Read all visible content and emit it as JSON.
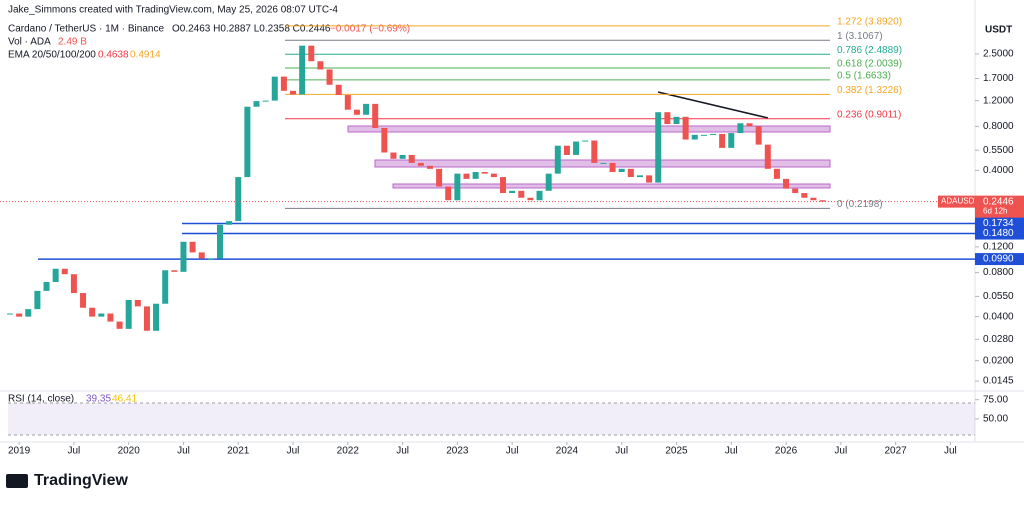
{
  "header": {
    "credit": "Jake_Simmons created with TradingView.com, May 25, 2026 08:07 UTC-4",
    "symbol": "Cardano / TetherUS · 1M · Binance",
    "ohlc": "O0.2463 H0.2887 L0.2358 C0.2446",
    "change": "−0.0017 (−0.69%)",
    "volume": "Vol · ADA",
    "volume_value": "2.49 B",
    "ema": "EMA 20/50/100/200",
    "ema_values": [
      "0.4638",
      "0.4914"
    ],
    "rsi": "RSI (14, close)",
    "rsi_values": [
      "39.35",
      "46.41"
    ],
    "currency": "USDT",
    "logo": "TradingView"
  },
  "chart_data": {
    "type": "candlestick",
    "log_scale": true,
    "x": [
      "2018-12",
      "2019-01",
      "2019-02",
      "2019-03",
      "2019-04",
      "2019-05",
      "2019-06",
      "2019-07",
      "2019-08",
      "2019-09",
      "2019-10",
      "2019-11",
      "2019-12",
      "2020-01",
      "2020-02",
      "2020-03",
      "2020-04",
      "2020-05",
      "2020-06",
      "2020-07",
      "2020-08",
      "2020-09",
      "2020-10",
      "2020-11",
      "2020-12",
      "2021-01",
      "2021-02",
      "2021-03",
      "2021-04",
      "2021-05",
      "2021-06",
      "2021-07",
      "2021-08",
      "2021-09",
      "2021-10",
      "2021-11",
      "2021-12",
      "2022-01",
      "2022-02",
      "2022-03",
      "2022-04",
      "2022-05",
      "2022-06",
      "2022-07",
      "2022-08",
      "2022-09",
      "2022-10",
      "2022-11",
      "2022-12",
      "2023-01",
      "2023-02",
      "2023-03",
      "2023-04",
      "2023-05",
      "2023-06",
      "2023-07",
      "2023-08",
      "2023-09",
      "2023-10",
      "2023-11",
      "2023-12",
      "2024-01",
      "2024-02",
      "2024-03",
      "2024-04",
      "2024-05",
      "2024-06",
      "2024-07",
      "2024-08",
      "2024-09",
      "2024-10",
      "2024-11",
      "2024-12",
      "2025-01",
      "2025-02",
      "2025-03",
      "2025-04",
      "2025-05",
      "2025-06",
      "2025-07",
      "2025-08",
      "2025-09",
      "2025-10",
      "2025-11",
      "2025-12",
      "2026-01",
      "2026-02",
      "2026-03",
      "2026-04",
      "2026-05"
    ],
    "close": [
      0.042,
      0.04,
      0.045,
      0.06,
      0.069,
      0.085,
      0.078,
      0.058,
      0.046,
      0.04,
      0.042,
      0.037,
      0.033,
      0.052,
      0.047,
      0.032,
      0.049,
      0.083,
      0.081,
      0.13,
      0.11,
      0.1,
      0.1,
      0.17,
      0.18,
      0.36,
      1.09,
      1.19,
      1.2,
      1.75,
      1.4,
      1.32,
      2.85,
      2.23,
      1.96,
      1.54,
      1.31,
      1.04,
      0.96,
      1.14,
      0.78,
      0.53,
      0.48,
      0.51,
      0.45,
      0.43,
      0.41,
      0.31,
      0.25,
      0.38,
      0.35,
      0.39,
      0.38,
      0.36,
      0.28,
      0.29,
      0.26,
      0.25,
      0.29,
      0.38,
      0.59,
      0.51,
      0.63,
      0.64,
      0.45,
      0.45,
      0.39,
      0.41,
      0.36,
      0.37,
      0.33,
      1.0,
      0.83,
      0.93,
      0.65,
      0.7,
      0.7,
      0.71,
      0.57,
      0.72,
      0.84,
      0.8,
      0.6,
      0.41,
      0.35,
      0.3,
      0.28,
      0.26,
      0.25,
      0.2446
    ],
    "up_color": "#26a69a",
    "down_color": "#ef5350",
    "ylim": [
      0.0126,
      5.85
    ],
    "yticks": [
      {
        "value": 2.5,
        "label": "2.5000"
      },
      {
        "value": 1.7,
        "label": "1.7000"
      },
      {
        "value": 1.2,
        "label": "1.2000"
      },
      {
        "value": 0.8,
        "label": "0.8000"
      },
      {
        "value": 0.55,
        "label": "0.5500"
      },
      {
        "value": 0.4,
        "label": "0.4000"
      },
      {
        "value": 0.12,
        "label": "0.1200"
      },
      {
        "value": 0.08,
        "label": "0.0800"
      },
      {
        "value": 0.055,
        "label": "0.0550"
      },
      {
        "value": 0.04,
        "label": "0.0400"
      },
      {
        "value": 0.028,
        "label": "0.0280"
      },
      {
        "value": 0.02,
        "label": "0.0200"
      },
      {
        "value": 0.0145,
        "label": "0.0145"
      }
    ],
    "xticks": [
      {
        "value": "2019-01",
        "label": "2019"
      },
      {
        "value": "2019-07",
        "label": "Jul"
      },
      {
        "value": "2020-01",
        "label": "2020"
      },
      {
        "value": "2020-07",
        "label": "Jul"
      },
      {
        "value": "2021-01",
        "label": "2021"
      },
      {
        "value": "2021-07",
        "label": "Jul"
      },
      {
        "value": "2022-01",
        "label": "2022"
      },
      {
        "value": "2022-07",
        "label": "Jul"
      },
      {
        "value": "2023-01",
        "label": "2023"
      },
      {
        "value": "2023-07",
        "label": "Jul"
      },
      {
        "value": "2024-01",
        "label": "2024"
      },
      {
        "value": "2024-07",
        "label": "Jul"
      },
      {
        "value": "2025-01",
        "label": "2025"
      },
      {
        "value": "2025-07",
        "label": "Jul"
      },
      {
        "value": "2026-01",
        "label": "2026"
      },
      {
        "value": "2026-07",
        "label": "Jul"
      },
      {
        "value": "2027-01",
        "label": "2027"
      },
      {
        "value": "2027-07",
        "label": "Jul"
      }
    ],
    "fib_levels": [
      {
        "label": "1.272 (3.8920)",
        "value": 3.892,
        "color": "#f5a623"
      },
      {
        "label": "1 (3.1067)",
        "value": 3.1067,
        "color": "#787b86"
      },
      {
        "label": "0.786 (2.4889)",
        "value": 2.4889,
        "color": "#22ab94"
      },
      {
        "label": "0.618 (2.0039)",
        "value": 2.0039,
        "color": "#4caf50"
      },
      {
        "label": "0.5 (1.6633)",
        "value": 1.6633,
        "color": "#4caf50"
      },
      {
        "label": "0.382 (1.3226)",
        "value": 1.3226,
        "color": "#f5a623"
      },
      {
        "label": "0.236 (0.9011)",
        "value": 0.9011,
        "color": "#f23645"
      },
      {
        "label": "0 (0.2198)",
        "value": 0.2198,
        "color": "#787b86"
      }
    ],
    "levels": [
      {
        "value": 0.1734,
        "label": "0.1734"
      },
      {
        "value": 0.148,
        "label": "0.1480"
      },
      {
        "value": 0.099,
        "label": "0.0990"
      }
    ],
    "level_color": "#1e4fd6",
    "last_price": {
      "symbol": "ADAUSDT",
      "value": 0.2446,
      "label": "0.2446",
      "countdown": "6d 12h"
    },
    "rsi_ylim": [
      20,
      85
    ],
    "rsi_yticks": [
      {
        "value": 75,
        "label": "75.00"
      },
      {
        "value": 50,
        "label": "50.00"
      }
    ]
  }
}
